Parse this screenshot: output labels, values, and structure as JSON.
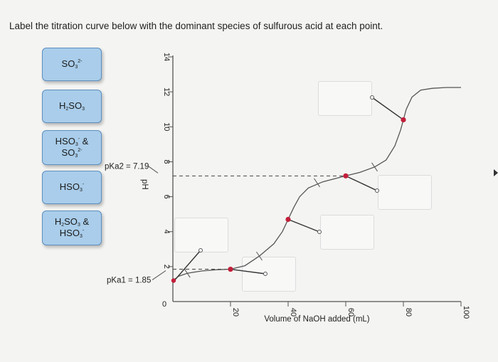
{
  "prompt": "Label the titration curve below with the dominant species of sulfurous acid at each point.",
  "chips": [
    {
      "base": "SO",
      "sub": "3",
      "sup": "2-"
    },
    {
      "line1": {
        "pre": "H",
        "sub1": "2",
        "mid": "SO",
        "sub2": "3"
      }
    },
    {
      "line1": {
        "pre": "HSO",
        "sub": "3",
        "sup": "-",
        "tail": " &"
      },
      "line2": {
        "base": "SO",
        "sub": "3",
        "sup": "2-"
      }
    },
    {
      "base": "HSO",
      "sub": "3",
      "sup": "-"
    },
    {
      "line1": {
        "pre": "H",
        "sub1": "2",
        "mid": "SO",
        "sub2": "3",
        "tail": " &"
      },
      "line2": {
        "base": "HSO",
        "sub": "3",
        "sup": "-"
      }
    }
  ],
  "chart_data": {
    "type": "line",
    "xlabel": "Volume of NaOH added (mL)",
    "ylabel": "pH",
    "xlim": [
      0,
      100
    ],
    "ylim": [
      0,
      14
    ],
    "xticks": [
      20,
      40,
      60,
      80,
      100
    ],
    "yticks": [
      0,
      2,
      4,
      6,
      8,
      10,
      12,
      14
    ],
    "pka1_label": "pKa1 = 1.85",
    "pka2_label": "pKa2 = 7.19",
    "pka1": 1.85,
    "pka2": 7.19,
    "curve": [
      [
        0,
        1.2
      ],
      [
        2,
        1.45
      ],
      [
        5,
        1.62
      ],
      [
        10,
        1.75
      ],
      [
        15,
        1.82
      ],
      [
        20,
        1.85
      ],
      [
        25,
        2.05
      ],
      [
        30,
        2.6
      ],
      [
        35,
        3.3
      ],
      [
        38,
        4.0
      ],
      [
        40,
        4.7
      ],
      [
        42,
        5.4
      ],
      [
        44,
        6.0
      ],
      [
        47,
        6.5
      ],
      [
        52,
        6.85
      ],
      [
        60,
        7.19
      ],
      [
        65,
        7.4
      ],
      [
        70,
        7.7
      ],
      [
        74,
        8.1
      ],
      [
        77,
        8.9
      ],
      [
        79,
        9.8
      ],
      [
        80,
        10.4
      ],
      [
        81,
        11.0
      ],
      [
        83,
        11.7
      ],
      [
        86,
        12.1
      ],
      [
        90,
        12.2
      ],
      [
        95,
        12.25
      ],
      [
        100,
        12.25
      ]
    ],
    "marked_points": [
      [
        20,
        1.85
      ],
      [
        40,
        4.7
      ],
      [
        60,
        7.19
      ],
      [
        80,
        10.4
      ]
    ]
  }
}
